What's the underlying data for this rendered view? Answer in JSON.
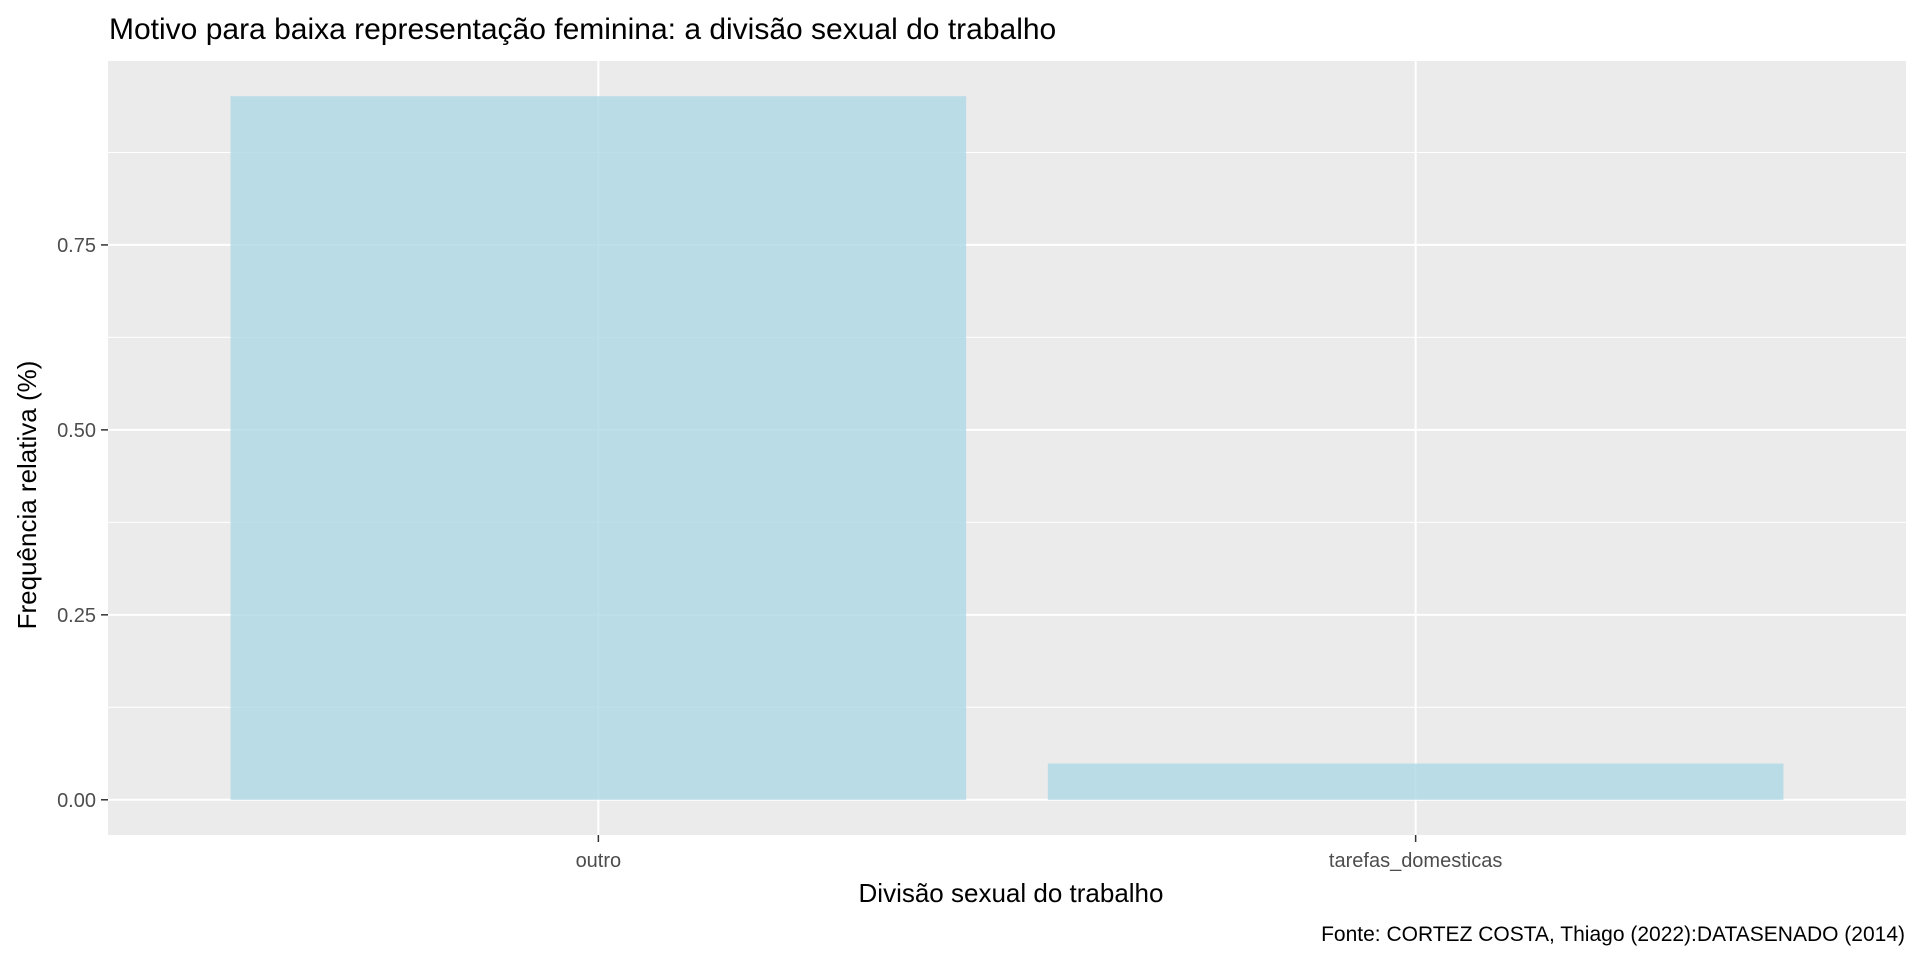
{
  "chart_data": {
    "type": "bar",
    "title": "Motivo para baixa representação feminina: a divisão sexual do trabalho",
    "xlabel": "Divisão sexual do trabalho",
    "ylabel": "Frequência relativa (%)",
    "caption": "Fonte: CORTEZ COSTA, Thiago (2022):DATASENADO (2014)",
    "categories": [
      "outro",
      "tarefas_domesticas"
    ],
    "values": [
      0.951,
      0.049
    ],
    "ylim": [
      -0.0476,
      0.9986
    ],
    "yticks": [
      0,
      0.25,
      0.5,
      0.75
    ],
    "ytick_labels": [
      "0.00",
      "0.25",
      "0.50",
      "0.75"
    ],
    "grid": true,
    "colors": {
      "panel_background": "#ebebeb",
      "grid": "#ffffff",
      "bar_fill": "#add8e6",
      "bar_opacity": 0.8,
      "tick_color": "#333333",
      "tick_text": "#4d4d4d"
    }
  }
}
